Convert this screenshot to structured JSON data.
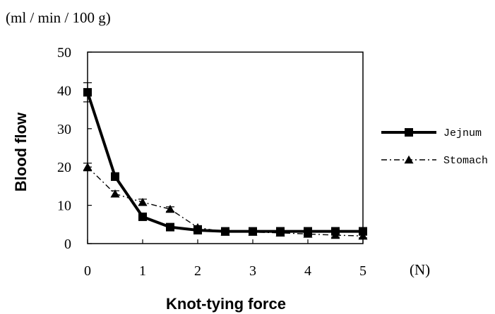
{
  "chart_data": {
    "type": "line",
    "unit_label": "(ml / min / 100 g)",
    "ylabel": "Blood flow",
    "xlabel": "Knot-tying force",
    "x_unit_label": "(N)",
    "xlim": [
      0,
      5
    ],
    "ylim": [
      0,
      50
    ],
    "x_ticks": [
      "0",
      "1",
      "2",
      "3",
      "4",
      "5"
    ],
    "y_ticks": [
      "0",
      "10",
      "20",
      "30",
      "40",
      "50"
    ],
    "grid": false,
    "legend_position": "right",
    "series": [
      {
        "name": "Jejnum",
        "marker": "square",
        "line_style": "solid-thick",
        "color": "#000000",
        "x": [
          0,
          0.5,
          1,
          1.5,
          2,
          2.5,
          3,
          3.5,
          4,
          4.5,
          5
        ],
        "y": [
          39.5,
          17.5,
          7,
          4.3,
          3.5,
          3.2,
          3.2,
          3.2,
          3.2,
          3.2,
          3.2
        ],
        "err": [
          2.5,
          1.0,
          0.8,
          0.5,
          0.5,
          0.8,
          0.8,
          1.0,
          1.0,
          1.0,
          1.0
        ]
      },
      {
        "name": "Stomach",
        "marker": "triangle",
        "line_style": "dash-dot",
        "color": "#000000",
        "x": [
          0,
          0.5,
          1,
          1.5,
          2,
          2.5,
          3,
          3.5,
          4,
          4.5,
          5
        ],
        "y": [
          20,
          13,
          10.8,
          9,
          4.2,
          3,
          3,
          2.8,
          2.5,
          2.2,
          2
        ],
        "err": [
          1.0,
          0.8,
          0.8,
          0.6,
          0.5,
          0.5,
          0.5,
          0.5,
          0.5,
          0.5,
          0.5
        ]
      }
    ]
  }
}
